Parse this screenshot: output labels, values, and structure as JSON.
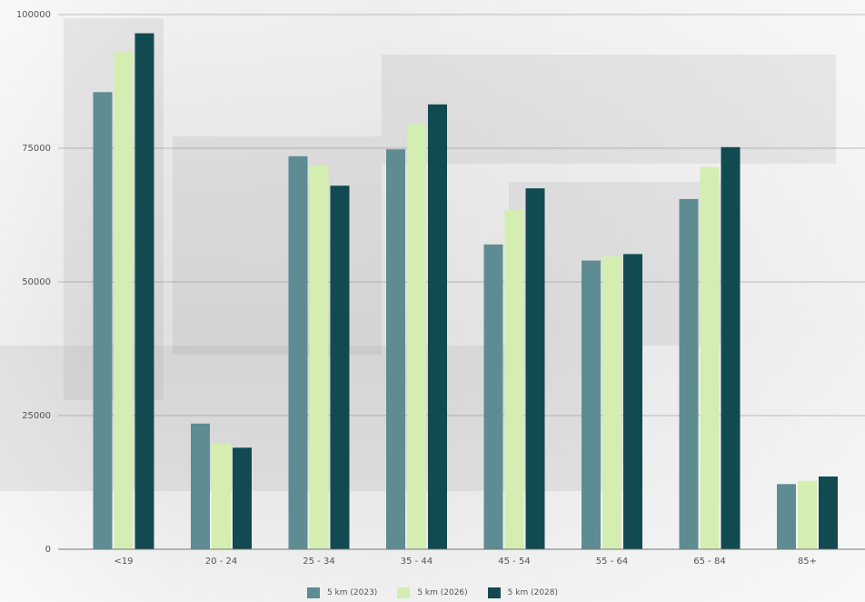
{
  "chart_data": {
    "type": "bar",
    "categories": [
      "<19",
      "20 - 24",
      "25 - 34",
      "35 - 44",
      "45 - 54",
      "55 - 64",
      "65 - 84",
      "85+"
    ],
    "series": [
      {
        "name": "5 km (2023)",
        "color": "#5e8c93",
        "values": [
          85500,
          23500,
          73500,
          74800,
          57000,
          54000,
          65500,
          12200
        ]
      },
      {
        "name": "5 km (2026)",
        "color": "#d4eeb2",
        "values": [
          93000,
          19800,
          71800,
          79500,
          63500,
          54800,
          71500,
          12800
        ]
      },
      {
        "name": "5 km (2028)",
        "color": "#124a52",
        "values": [
          96500,
          19000,
          68000,
          83200,
          67500,
          55200,
          75200,
          13600
        ]
      }
    ],
    "yticks": [
      "0",
      "25000",
      "50000",
      "75000",
      "100000"
    ],
    "ylim": [
      0,
      100000
    ],
    "grid": true,
    "legend": "bottom",
    "title": "",
    "xlabel": "",
    "ylabel": ""
  }
}
